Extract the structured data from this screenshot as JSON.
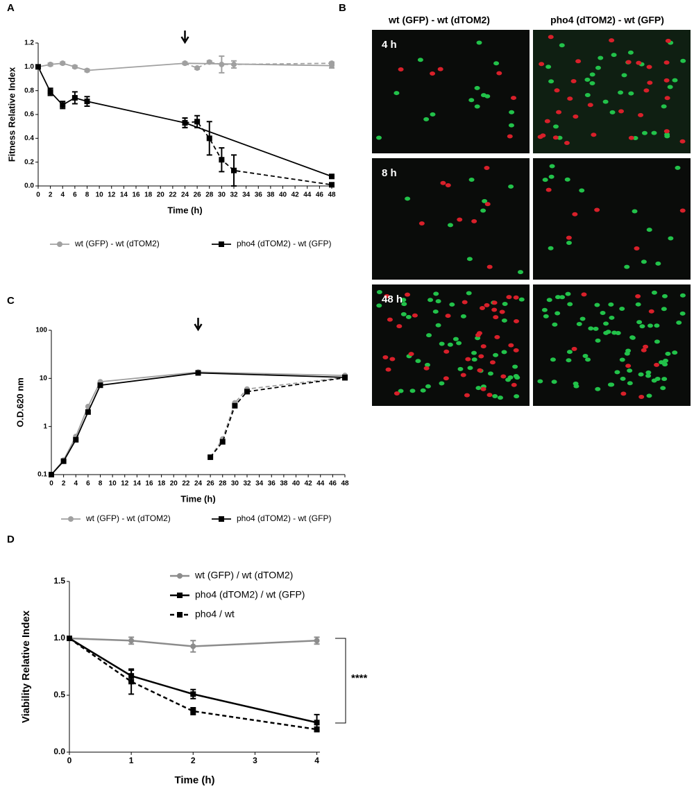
{
  "chart_data": [
    {
      "type": "line",
      "panel": "A",
      "xlabel": "Time (h)",
      "ylabel": "Fitness Relative Index",
      "xlim": [
        0,
        48
      ],
      "xticks": [
        0,
        2,
        4,
        6,
        8,
        10,
        12,
        14,
        16,
        18,
        20,
        22,
        24,
        26,
        28,
        30,
        32,
        34,
        36,
        38,
        40,
        42,
        44,
        46,
        48
      ],
      "ylim": [
        0,
        1.2
      ],
      "yticks": [
        {
          "value": 0,
          "label": "0.0"
        },
        0.2,
        0.4,
        0.6,
        0.8,
        {
          "value": 1,
          "label": "1.0"
        },
        1.2
      ],
      "log_y": false,
      "arrow_x": 24,
      "series": [
        {
          "name": "wt (GFP) - wt (dTOM2)",
          "color": "#a0a0a0",
          "marker": "circle",
          "dashed": false,
          "x": [
            0,
            2,
            4,
            6,
            8,
            24,
            48
          ],
          "values": [
            1.0,
            1.02,
            1.03,
            1.0,
            0.97,
            1.03,
            1.01
          ],
          "errors": [
            0,
            0.01,
            0.01,
            0.01,
            0.01,
            0.01,
            0.02
          ]
        },
        {
          "color": "#a0a0a0",
          "marker": "circle",
          "dashed": true,
          "x": [
            24,
            26,
            28,
            30,
            32,
            48
          ],
          "values": [
            1.03,
            0.99,
            1.04,
            1.02,
            1.02,
            1.03
          ],
          "errors": [
            0.01,
            0.01,
            0.01,
            0.07,
            0.03,
            0.01
          ]
        },
        {
          "name": "pho4 (dTOM2) - wt (GFP)",
          "color": "#000000",
          "marker": "square",
          "dashed": false,
          "x": [
            0,
            2,
            4,
            6,
            8,
            24,
            48
          ],
          "values": [
            1.0,
            0.79,
            0.68,
            0.74,
            0.71,
            0.53,
            0.08
          ],
          "errors": [
            0,
            0.03,
            0.03,
            0.05,
            0.04,
            0.04,
            0
          ]
        },
        {
          "color": "#000000",
          "marker": "square",
          "dashed": true,
          "x": [
            24,
            26,
            28,
            30,
            32,
            48
          ],
          "values": [
            0.53,
            0.54,
            0.4,
            0.22,
            0.13,
            0.01
          ],
          "errors": [
            0.04,
            0.05,
            0.14,
            0.1,
            0.13,
            0
          ]
        }
      ]
    },
    {
      "type": "line",
      "panel": "C",
      "xlabel": "Time (h)",
      "ylabel": "O.D.620 nm",
      "xlim": [
        0,
        48
      ],
      "xticks": [
        0,
        2,
        4,
        6,
        8,
        10,
        12,
        14,
        16,
        18,
        20,
        22,
        24,
        26,
        28,
        30,
        32,
        34,
        36,
        38,
        40,
        42,
        44,
        46,
        48
      ],
      "ylim": [
        0.1,
        100
      ],
      "yticks": [
        0.1,
        1,
        10,
        100
      ],
      "log_y": true,
      "arrow_x": 24,
      "series": [
        {
          "name": "wt (GFP) - wt (dTOM2)",
          "color": "#a0a0a0",
          "marker": "circle",
          "dashed": false,
          "x": [
            0,
            2,
            4,
            6,
            8,
            24,
            48
          ],
          "values": [
            0.1,
            0.2,
            0.62,
            2.6,
            8.5,
            13.5,
            11.5
          ]
        },
        {
          "color": "#a0a0a0",
          "marker": "circle",
          "dashed": true,
          "x": [
            26,
            28,
            30,
            32,
            48
          ],
          "values": [
            0.23,
            0.55,
            3.1,
            6.0,
            10.5
          ]
        },
        {
          "name": "pho4 (dTOM2) - wt (GFP)",
          "color": "#000000",
          "marker": "square",
          "dashed": false,
          "x": [
            0,
            2,
            4,
            6,
            8,
            24,
            48
          ],
          "values": [
            0.1,
            0.19,
            0.53,
            2.0,
            7.2,
            13.0,
            10.5
          ]
        },
        {
          "color": "#000000",
          "marker": "square",
          "dashed": true,
          "x": [
            26,
            28,
            30,
            32,
            48
          ],
          "values": [
            0.23,
            0.48,
            2.7,
            5.3,
            10.3
          ]
        }
      ]
    },
    {
      "type": "line",
      "panel": "D",
      "xlabel": "Time (h)",
      "ylabel": "Viability Relative Index",
      "xlim": [
        0,
        4.05
      ],
      "xticks": [
        0,
        1,
        2,
        3,
        4
      ],
      "ylim": [
        0,
        1.5
      ],
      "yticks": [
        {
          "value": 0,
          "label": "0.0"
        },
        0.5,
        {
          "value": 1,
          "label": "1.0"
        },
        1.5
      ],
      "log_y": false,
      "annotation": "****",
      "series": [
        {
          "name": "wt (GFP) / wt (dTOM2)",
          "color": "#8c8c8c",
          "marker": "circle",
          "dashed": false,
          "x": [
            0,
            1,
            2,
            4
          ],
          "values": [
            1.0,
            0.98,
            0.93,
            0.98
          ],
          "errors": [
            0,
            0.03,
            0.05,
            0.03
          ]
        },
        {
          "name": "pho4 (dTOM2) / wt (GFP)",
          "color": "#000000",
          "marker": "square",
          "dashed": false,
          "x": [
            0,
            1,
            2,
            4
          ],
          "values": [
            1.0,
            0.67,
            0.51,
            0.26
          ],
          "errors": [
            0,
            0.05,
            0.04,
            0.07
          ]
        },
        {
          "name": "pho4 / wt",
          "color": "#000000",
          "marker": "square",
          "dashed": true,
          "x": [
            0,
            1,
            2,
            4
          ],
          "values": [
            1.0,
            0.62,
            0.36,
            0.2
          ],
          "errors": [
            0,
            0.11,
            0.03,
            0.02
          ]
        }
      ]
    }
  ],
  "panel_b": {
    "panel": "B",
    "columns": [
      "wt (GFP) - wt (dTOM2)",
      "pho4 (dTOM2) - wt (GFP)"
    ],
    "rows": [
      "4 h",
      "8 h",
      "48 h"
    ]
  }
}
